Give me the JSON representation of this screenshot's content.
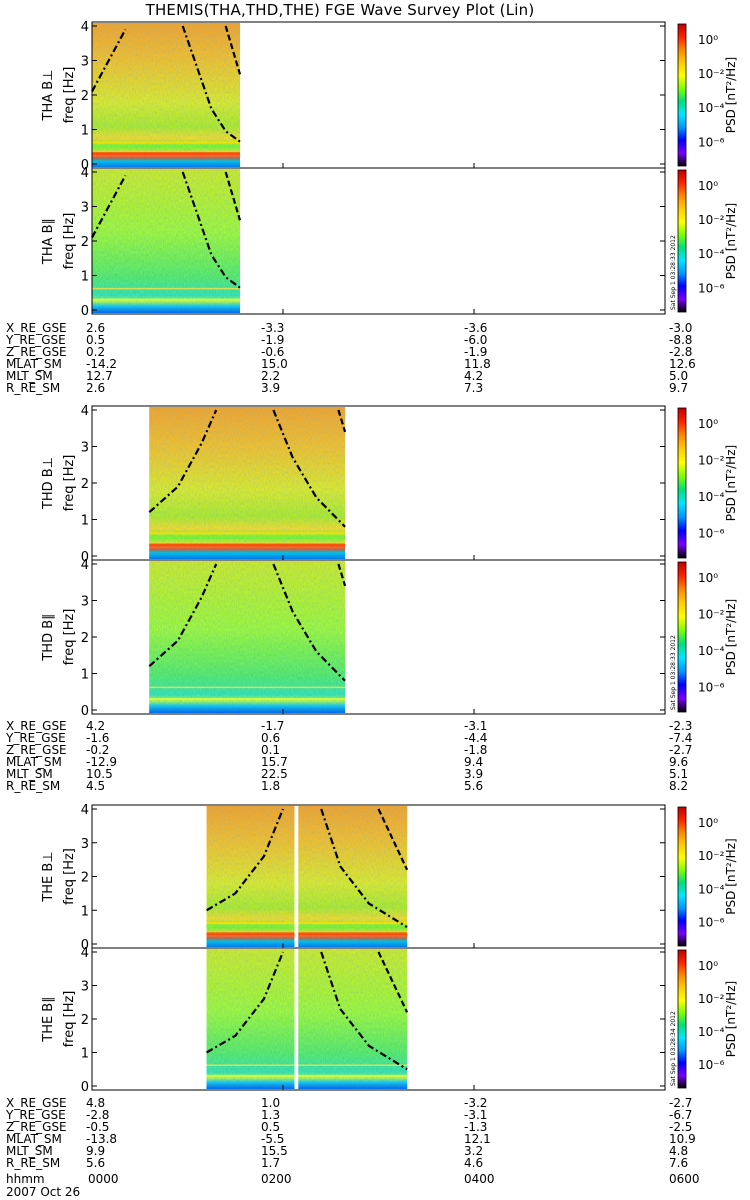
{
  "title": "THEMIS(THA,THD,THE) FGE Wave Survey Plot (Lin)",
  "date_label": "2007 Oct 26",
  "time_row_label": "hhmm",
  "time_ticks": [
    "0000",
    "0200",
    "0400",
    "0600"
  ],
  "colors": {
    "panel_border": "#000000",
    "cyclotron_curve": "#000000",
    "colorbar_stops": [
      "#000000",
      "#7a00ff",
      "#0000ff",
      "#0099ff",
      "#00e5ff",
      "#00e07a",
      "#7dff00",
      "#ffff00",
      "#ffcc00",
      "#ff8800",
      "#ff2200",
      "#c00000"
    ]
  },
  "colorbar": {
    "label": "PSD [nT²/Hz]",
    "tick_labels": [
      "10⁰",
      "10⁻²",
      "10⁻⁴",
      "10⁻⁶"
    ]
  },
  "stamps": [
    "Sat Sep 1 03:28:33 2012",
    "Sat Sep 1 03:28:33 2012",
    "Sat Sep 1 03:28:34 2012"
  ],
  "chart_data": [
    {
      "type": "heatmap",
      "probe": "THA",
      "panels": [
        {
          "ylabel": "THA B⊥",
          "yunit": "freq [Hz]"
        },
        {
          "ylabel": "THA B∥",
          "yunit": "freq [Hz]"
        }
      ],
      "xlim_hours": [
        0,
        6
      ],
      "ylim_hz": [
        0,
        4
      ],
      "yticks": [
        0,
        1,
        2,
        3,
        4
      ],
      "data_hours": [
        0.0,
        1.55
      ],
      "cyclotron_curves": [
        {
          "style": "dash-dot",
          "points": [
            [
              0.0,
              2.1
            ],
            [
              0.35,
              3.9
            ]
          ]
        },
        {
          "style": "dash-dot",
          "points": [
            [
              0.95,
              4.0
            ],
            [
              1.1,
              2.8
            ],
            [
              1.25,
              1.6
            ],
            [
              1.4,
              0.95
            ],
            [
              1.55,
              0.65
            ]
          ]
        },
        {
          "style": "dashed",
          "points": [
            [
              1.4,
              4.0
            ],
            [
              1.55,
              2.6
            ]
          ]
        }
      ],
      "ephemeris": {
        "X_RE_GSE": [
          "2.6",
          "-3.3",
          "-3.6",
          "-3.0"
        ],
        "Y_RE_GSE": [
          "0.5",
          "-1.9",
          "-6.0",
          "-8.8"
        ],
        "Z_RE_GSE": [
          "0.2",
          "-0.6",
          "-1.9",
          "-2.8"
        ],
        "MLAT_SM": [
          "-14.2",
          "15.0",
          "11.8",
          "12.6"
        ],
        "MLT_SM": [
          "12.7",
          "2.2",
          "4.2",
          "5.0"
        ],
        "R_RE_SM": [
          "2.6",
          "3.9",
          "7.3",
          "9.7"
        ]
      }
    },
    {
      "type": "heatmap",
      "probe": "THD",
      "panels": [
        {
          "ylabel": "THD B⊥",
          "yunit": "freq [Hz]"
        },
        {
          "ylabel": "THD B∥",
          "yunit": "freq [Hz]"
        }
      ],
      "xlim_hours": [
        0,
        6
      ],
      "ylim_hz": [
        0,
        4
      ],
      "yticks": [
        0,
        1,
        2,
        3,
        4
      ],
      "data_hours": [
        0.6,
        2.65
      ],
      "cyclotron_curves": [
        {
          "style": "dash-dot",
          "points": [
            [
              0.6,
              1.2
            ],
            [
              0.9,
              1.9
            ],
            [
              1.15,
              3.1
            ],
            [
              1.3,
              4.0
            ]
          ]
        },
        {
          "style": "dash-dot",
          "points": [
            [
              1.9,
              4.0
            ],
            [
              2.1,
              2.7
            ],
            [
              2.35,
              1.6
            ],
            [
              2.65,
              0.8
            ]
          ]
        },
        {
          "style": "dashed",
          "points": [
            [
              2.58,
              4.0
            ],
            [
              2.65,
              3.4
            ]
          ]
        }
      ],
      "ephemeris": {
        "X_RE_GSE": [
          "4.2",
          "-1.7",
          "-3.1",
          "-2.3"
        ],
        "Y_RE_GSE": [
          "-1.6",
          "0.6",
          "-4.4",
          "-7.4"
        ],
        "Z_RE_GSE": [
          "-0.2",
          "0.1",
          "-1.8",
          "-2.7"
        ],
        "MLAT_SM": [
          "-12.9",
          "15.7",
          "9.4",
          "9.6"
        ],
        "MLT_SM": [
          "10.5",
          "22.5",
          "3.9",
          "5.1"
        ],
        "R_RE_SM": [
          "4.5",
          "1.8",
          "5.6",
          "8.2"
        ]
      }
    },
    {
      "type": "heatmap",
      "probe": "THE",
      "panels": [
        {
          "ylabel": "THE B⊥",
          "yunit": "freq [Hz]"
        },
        {
          "ylabel": "THE B∥",
          "yunit": "freq [Hz]"
        }
      ],
      "xlim_hours": [
        0,
        6
      ],
      "ylim_hz": [
        0,
        4
      ],
      "yticks": [
        0,
        1,
        2,
        3,
        4
      ],
      "data_hours": [
        1.2,
        3.3
      ],
      "gap_hours": [
        2.12,
        2.16
      ],
      "cyclotron_curves": [
        {
          "style": "dash-dot",
          "points": [
            [
              1.2,
              1.0
            ],
            [
              1.5,
              1.5
            ],
            [
              1.8,
              2.6
            ],
            [
              2.0,
              4.0
            ]
          ]
        },
        {
          "style": "dash-dot",
          "points": [
            [
              2.4,
              4.0
            ],
            [
              2.6,
              2.3
            ],
            [
              2.9,
              1.2
            ],
            [
              3.3,
              0.5
            ]
          ]
        },
        {
          "style": "dashed",
          "points": [
            [
              3.0,
              4.0
            ],
            [
              3.3,
              2.2
            ]
          ]
        }
      ],
      "ephemeris": {
        "X_RE_GSE": [
          "4.8",
          "1.0",
          "-3.2",
          "-2.7"
        ],
        "Y_RE_GSE": [
          "-2.8",
          "1.3",
          "-3.1",
          "-6.7"
        ],
        "Z_RE_GSE": [
          "-0.5",
          "0.5",
          "-1.3",
          "-2.5"
        ],
        "MLAT_SM": [
          "-13.8",
          "-5.5",
          "12.1",
          "10.9"
        ],
        "MLT_SM": [
          "9.9",
          "15.5",
          "3.2",
          "4.8"
        ],
        "R_RE_SM": [
          "5.6",
          "1.7",
          "4.6",
          "7.6"
        ]
      }
    }
  ]
}
